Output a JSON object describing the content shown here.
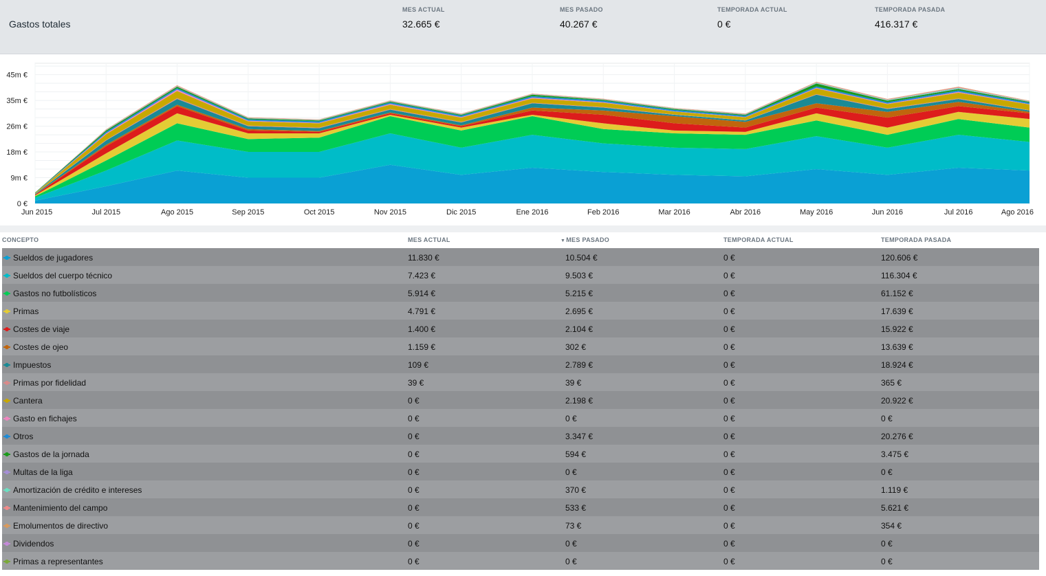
{
  "summary": {
    "title": "Gastos totales",
    "stats": [
      {
        "label": "MES ACTUAL",
        "value": "32.665 €"
      },
      {
        "label": "MES PASADO",
        "value": "40.267 €"
      },
      {
        "label": "TEMPORADA ACTUAL",
        "value": "0 €"
      },
      {
        "label": "TEMPORADA PASADA",
        "value": "416.317 €"
      }
    ]
  },
  "chart_data": {
    "type": "area",
    "stacked": true,
    "x": [
      "Jun 2015",
      "Jul 2015",
      "Ago 2015",
      "Sep 2015",
      "Oct 2015",
      "Nov 2015",
      "Dic 2015",
      "Ene 2016",
      "Feb 2016",
      "Mar 2016",
      "Abr 2016",
      "May 2016",
      "Jun 2016",
      "Jul 2016",
      "Ago 2016"
    ],
    "y_ticks": [
      "0 €",
      "9m €",
      "18m €",
      "26m €",
      "35m €",
      "45m €"
    ],
    "ylim": [
      0,
      49
    ],
    "grid": true,
    "series": [
      {
        "name": "Sueldos de jugadores",
        "color": "#0aa0d4",
        "values": [
          1,
          6,
          11.5,
          9,
          9,
          13.5,
          10,
          12.5,
          11,
          10,
          9.5,
          12,
          10,
          12.5,
          11.5
        ]
      },
      {
        "name": "Sueldos del cuerpo técnico",
        "color": "#00bcc8",
        "values": [
          1,
          5.5,
          10.5,
          9,
          9,
          11,
          9.5,
          11.5,
          10,
          9.5,
          9.5,
          11.5,
          9.5,
          11.5,
          10
        ]
      },
      {
        "name": "Gastos no futbolísticos",
        "color": "#00cc55",
        "values": [
          0.5,
          3.5,
          6,
          4.5,
          5,
          6,
          6,
          6.5,
          5,
          5,
          5,
          5.5,
          4.5,
          5.5,
          5
        ]
      },
      {
        "name": "Primas",
        "color": "#e4cc35",
        "values": [
          0.3,
          2.5,
          3.5,
          2,
          1.5,
          0.5,
          1,
          0.5,
          2,
          1,
          1,
          2.5,
          2.5,
          2.5,
          3
        ]
      },
      {
        "name": "Costes de viaje",
        "color": "#dd1c1c",
        "values": [
          0.2,
          2.5,
          2.5,
          1,
          0.5,
          0.5,
          0.5,
          1.5,
          3,
          2.5,
          1.5,
          2,
          3.5,
          2,
          2
        ]
      },
      {
        "name": "Costes de ojeo",
        "color": "#c0650d",
        "values": [
          0.1,
          0.5,
          0.5,
          0.5,
          0.3,
          0.3,
          0.3,
          1,
          1.5,
          2.5,
          2,
          1.5,
          2,
          1.5,
          0.5
        ]
      },
      {
        "name": "Impuestos",
        "color": "#1a8a95",
        "values": [
          0.2,
          1.5,
          2,
          1,
          1,
          1,
          1,
          1.5,
          1,
          0.5,
          0.5,
          3,
          1,
          1,
          0.5
        ]
      },
      {
        "name": "Primas por fidelidad",
        "color": "#d98a8a",
        "values": [
          0.1,
          0.2,
          0.3,
          0.2,
          0.2,
          0.2,
          0.2,
          0.2,
          0.2,
          0.1,
          0.1,
          0.2,
          0.2,
          0.2,
          0.1
        ]
      },
      {
        "name": "Cantera",
        "color": "#c8a800",
        "values": [
          0.2,
          2,
          2.5,
          1.5,
          1.5,
          1.5,
          1.5,
          1.5,
          1.5,
          1,
          1,
          2,
          1.5,
          2,
          2
        ]
      },
      {
        "name": "Gasto en fichajes",
        "color": "#ee86c0",
        "values": [
          0,
          0.3,
          0.5,
          0.2,
          0.2,
          0.3,
          0.2,
          0.3,
          0.2,
          0.1,
          0.1,
          0.2,
          0.2,
          0.3,
          0.1
        ]
      },
      {
        "name": "Otros",
        "color": "#1f8bd6",
        "values": [
          0.1,
          0.5,
          0.5,
          0.5,
          0.5,
          0.5,
          0.5,
          0.5,
          0.5,
          0.5,
          0.5,
          0.5,
          0.5,
          0.5,
          0.5
        ]
      },
      {
        "name": "Gastos de la jornada",
        "color": "#1a9a1a",
        "values": [
          0.1,
          0.5,
          0.5,
          0.3,
          0.3,
          0.3,
          0.3,
          0.5,
          0.3,
          0.3,
          0.3,
          1,
          0.5,
          0.5,
          0.3
        ]
      },
      {
        "name": "Multas de la liga",
        "color": "#a58fd6",
        "values": [
          0,
          0.1,
          0.1,
          0.1,
          0.1,
          0.1,
          0.1,
          0.1,
          0.1,
          0.1,
          0.1,
          0.1,
          0.1,
          0.1,
          0.1
        ]
      },
      {
        "name": "Amortización de crédito e intereses",
        "color": "#6be0c2",
        "values": [
          0,
          0.1,
          0.1,
          0.1,
          0.1,
          0.1,
          0.1,
          0.1,
          0.1,
          0.1,
          0.1,
          0.2,
          0.2,
          0.3,
          0.1
        ]
      },
      {
        "name": "Mantenimiento del campo",
        "color": "#f08a8a",
        "values": [
          0,
          0.1,
          0.2,
          0.1,
          0.1,
          0.1,
          0.1,
          0.1,
          0.1,
          0.1,
          0.1,
          0.2,
          0.2,
          0.3,
          0.1
        ]
      },
      {
        "name": "Emolumentos de directivo",
        "color": "#d89a5e",
        "values": [
          0,
          0.1,
          0.1,
          0.1,
          0.1,
          0.1,
          0.1,
          0.1,
          0.1,
          0.1,
          0.1,
          0.1,
          0.1,
          0.1,
          0.1
        ]
      },
      {
        "name": "Dividendos",
        "color": "#c48ad8",
        "values": [
          0,
          0,
          0,
          0,
          0,
          0,
          0,
          0,
          0,
          0,
          0,
          0,
          0,
          0,
          0
        ]
      },
      {
        "name": "Primas a representantes",
        "color": "#7aa83a",
        "values": [
          0,
          0,
          0,
          0,
          0,
          0,
          0,
          0,
          0,
          0,
          0,
          0,
          0,
          0,
          0
        ]
      }
    ]
  },
  "table": {
    "headers": {
      "concepto": "CONCEPTO",
      "mes_actual": "MES ACTUAL",
      "mes_pasado": "MES PASADO",
      "temporada_actual": "TEMPORADA ACTUAL",
      "temporada_pasada": "TEMPORADA PASADA"
    },
    "sorted_column": "mes_pasado",
    "sort_icon": "sort-desc-icon",
    "rows": [
      {
        "concepto": "Sueldos de jugadores",
        "color": "#0aa0d4",
        "mes_actual": "11.830 €",
        "mes_pasado": "10.504 €",
        "temporada_actual": "0 €",
        "temporada_pasada": "120.606 €"
      },
      {
        "concepto": "Sueldos del cuerpo técnico",
        "color": "#00bcc8",
        "mes_actual": "7.423 €",
        "mes_pasado": "9.503 €",
        "temporada_actual": "0 €",
        "temporada_pasada": "116.304 €"
      },
      {
        "concepto": "Gastos no futbolísticos",
        "color": "#00cc55",
        "mes_actual": "5.914 €",
        "mes_pasado": "5.215 €",
        "temporada_actual": "0 €",
        "temporada_pasada": "61.152 €"
      },
      {
        "concepto": "Primas",
        "color": "#e4cc35",
        "mes_actual": "4.791 €",
        "mes_pasado": "2.695 €",
        "temporada_actual": "0 €",
        "temporada_pasada": "17.639 €"
      },
      {
        "concepto": "Costes de viaje",
        "color": "#dd1c1c",
        "mes_actual": "1.400 €",
        "mes_pasado": "2.104 €",
        "temporada_actual": "0 €",
        "temporada_pasada": "15.922 €"
      },
      {
        "concepto": "Costes de ojeo",
        "color": "#c0650d",
        "mes_actual": "1.159 €",
        "mes_pasado": "302 €",
        "temporada_actual": "0 €",
        "temporada_pasada": "13.639 €"
      },
      {
        "concepto": "Impuestos",
        "color": "#1a8a95",
        "mes_actual": "109 €",
        "mes_pasado": "2.789 €",
        "temporada_actual": "0 €",
        "temporada_pasada": "18.924 €"
      },
      {
        "concepto": "Primas por fidelidad",
        "color": "#d98a8a",
        "mes_actual": "39 €",
        "mes_pasado": "39 €",
        "temporada_actual": "0 €",
        "temporada_pasada": "365 €"
      },
      {
        "concepto": "Cantera",
        "color": "#c8a800",
        "mes_actual": "0 €",
        "mes_pasado": "2.198 €",
        "temporada_actual": "0 €",
        "temporada_pasada": "20.922 €"
      },
      {
        "concepto": "Gasto en fichajes",
        "color": "#ee86c0",
        "mes_actual": "0 €",
        "mes_pasado": "0 €",
        "temporada_actual": "0 €",
        "temporada_pasada": "0 €"
      },
      {
        "concepto": "Otros",
        "color": "#1f8bd6",
        "mes_actual": "0 €",
        "mes_pasado": "3.347 €",
        "temporada_actual": "0 €",
        "temporada_pasada": "20.276 €"
      },
      {
        "concepto": "Gastos de la jornada",
        "color": "#1a9a1a",
        "mes_actual": "0 €",
        "mes_pasado": "594 €",
        "temporada_actual": "0 €",
        "temporada_pasada": "3.475 €"
      },
      {
        "concepto": "Multas de la liga",
        "color": "#a58fd6",
        "mes_actual": "0 €",
        "mes_pasado": "0 €",
        "temporada_actual": "0 €",
        "temporada_pasada": "0 €"
      },
      {
        "concepto": "Amortización de crédito e intereses",
        "color": "#6be0c2",
        "mes_actual": "0 €",
        "mes_pasado": "370 €",
        "temporada_actual": "0 €",
        "temporada_pasada": "1.119 €"
      },
      {
        "concepto": "Mantenimiento del campo",
        "color": "#f08a8a",
        "mes_actual": "0 €",
        "mes_pasado": "533 €",
        "temporada_actual": "0 €",
        "temporada_pasada": "5.621 €"
      },
      {
        "concepto": "Emolumentos de directivo",
        "color": "#d89a5e",
        "mes_actual": "0 €",
        "mes_pasado": "73 €",
        "temporada_actual": "0 €",
        "temporada_pasada": "354 €"
      },
      {
        "concepto": "Dividendos",
        "color": "#c48ad8",
        "mes_actual": "0 €",
        "mes_pasado": "0 €",
        "temporada_actual": "0 €",
        "temporada_pasada": "0 €"
      },
      {
        "concepto": "Primas a representantes",
        "color": "#7aa83a",
        "mes_actual": "0 €",
        "mes_pasado": "0 €",
        "temporada_actual": "0 €",
        "temporada_pasada": "0 €"
      }
    ]
  }
}
